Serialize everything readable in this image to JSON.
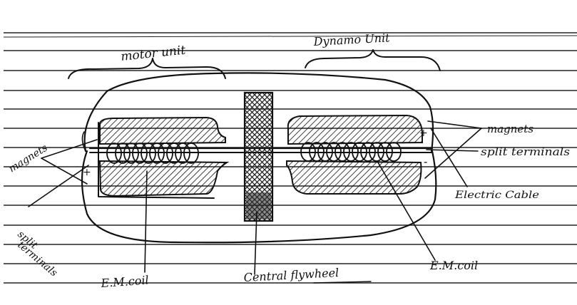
{
  "labels": {
    "motor_unit": "motor unit",
    "dynamo_unit": "Dynamo Unit",
    "magnets_left": "magnets",
    "magnets_right": "magnets",
    "split_terminals_left_1": "split",
    "split_terminals_left_2": "terminals",
    "split_terminals_right": "split terminals",
    "electric_cable": "Electric Cable",
    "em_coil_left": "E.M.coil",
    "em_coil_right": "E.M.coil",
    "central_flywheel": "Central flywheel",
    "plus_left": "+",
    "plus_right": "+",
    "minus_right": "-"
  },
  "colors": {
    "ink": "#111111",
    "paper": "#ffffff",
    "ruled_line": "#222222"
  }
}
